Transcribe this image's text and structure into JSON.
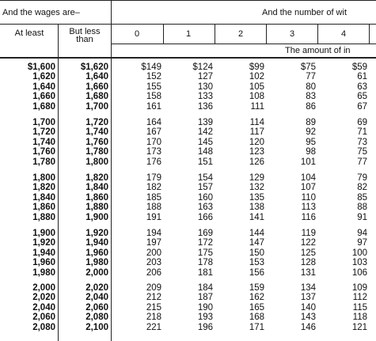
{
  "header": {
    "wages_title": "And the wages are–",
    "allowances_title": "And the number of wit",
    "at_least": "At least",
    "but_less_than": "But less than",
    "allowance_columns": [
      "0",
      "1",
      "2",
      "3",
      "4"
    ],
    "amount_caption": "The amount of in"
  },
  "groups": [
    {
      "rows": [
        {
          "at_least": "$1,600",
          "less_than": "$1,620",
          "values": [
            "$149",
            "$124",
            "$99",
            "$75",
            "$59"
          ]
        },
        {
          "at_least": "1,620",
          "less_than": "1,640",
          "values": [
            "152",
            "127",
            "102",
            "77",
            "61"
          ]
        },
        {
          "at_least": "1,640",
          "less_than": "1,660",
          "values": [
            "155",
            "130",
            "105",
            "80",
            "63"
          ]
        },
        {
          "at_least": "1,660",
          "less_than": "1,680",
          "values": [
            "158",
            "133",
            "108",
            "83",
            "65"
          ]
        },
        {
          "at_least": "1,680",
          "less_than": "1,700",
          "values": [
            "161",
            "136",
            "111",
            "86",
            "67"
          ]
        }
      ]
    },
    {
      "rows": [
        {
          "at_least": "1,700",
          "less_than": "1,720",
          "values": [
            "164",
            "139",
            "114",
            "89",
            "69"
          ]
        },
        {
          "at_least": "1,720",
          "less_than": "1,740",
          "values": [
            "167",
            "142",
            "117",
            "92",
            "71"
          ]
        },
        {
          "at_least": "1,740",
          "less_than": "1,760",
          "values": [
            "170",
            "145",
            "120",
            "95",
            "73"
          ]
        },
        {
          "at_least": "1,760",
          "less_than": "1,780",
          "values": [
            "173",
            "148",
            "123",
            "98",
            "75"
          ]
        },
        {
          "at_least": "1,780",
          "less_than": "1,800",
          "values": [
            "176",
            "151",
            "126",
            "101",
            "77"
          ]
        }
      ]
    },
    {
      "rows": [
        {
          "at_least": "1,800",
          "less_than": "1,820",
          "values": [
            "179",
            "154",
            "129",
            "104",
            "79"
          ]
        },
        {
          "at_least": "1,820",
          "less_than": "1,840",
          "values": [
            "182",
            "157",
            "132",
            "107",
            "82"
          ]
        },
        {
          "at_least": "1,840",
          "less_than": "1,860",
          "values": [
            "185",
            "160",
            "135",
            "110",
            "85"
          ]
        },
        {
          "at_least": "1,860",
          "less_than": "1,880",
          "values": [
            "188",
            "163",
            "138",
            "113",
            "88"
          ]
        },
        {
          "at_least": "1,880",
          "less_than": "1,900",
          "values": [
            "191",
            "166",
            "141",
            "116",
            "91"
          ]
        }
      ]
    },
    {
      "rows": [
        {
          "at_least": "1,900",
          "less_than": "1,920",
          "values": [
            "194",
            "169",
            "144",
            "119",
            "94"
          ]
        },
        {
          "at_least": "1,920",
          "less_than": "1,940",
          "values": [
            "197",
            "172",
            "147",
            "122",
            "97"
          ]
        },
        {
          "at_least": "1,940",
          "less_than": "1,960",
          "values": [
            "200",
            "175",
            "150",
            "125",
            "100"
          ]
        },
        {
          "at_least": "1,960",
          "less_than": "1,980",
          "values": [
            "203",
            "178",
            "153",
            "128",
            "103"
          ]
        },
        {
          "at_least": "1,980",
          "less_than": "2,000",
          "values": [
            "206",
            "181",
            "156",
            "131",
            "106"
          ]
        }
      ]
    },
    {
      "rows": [
        {
          "at_least": "2,000",
          "less_than": "2,020",
          "values": [
            "209",
            "184",
            "159",
            "134",
            "109"
          ]
        },
        {
          "at_least": "2,020",
          "less_than": "2,040",
          "values": [
            "212",
            "187",
            "162",
            "137",
            "112"
          ]
        },
        {
          "at_least": "2,040",
          "less_than": "2,060",
          "values": [
            "215",
            "190",
            "165",
            "140",
            "115"
          ]
        },
        {
          "at_least": "2,060",
          "less_than": "2,080",
          "values": [
            "218",
            "193",
            "168",
            "143",
            "118"
          ]
        },
        {
          "at_least": "2,080",
          "less_than": "2,100",
          "values": [
            "221",
            "196",
            "171",
            "146",
            "121"
          ]
        }
      ]
    }
  ]
}
